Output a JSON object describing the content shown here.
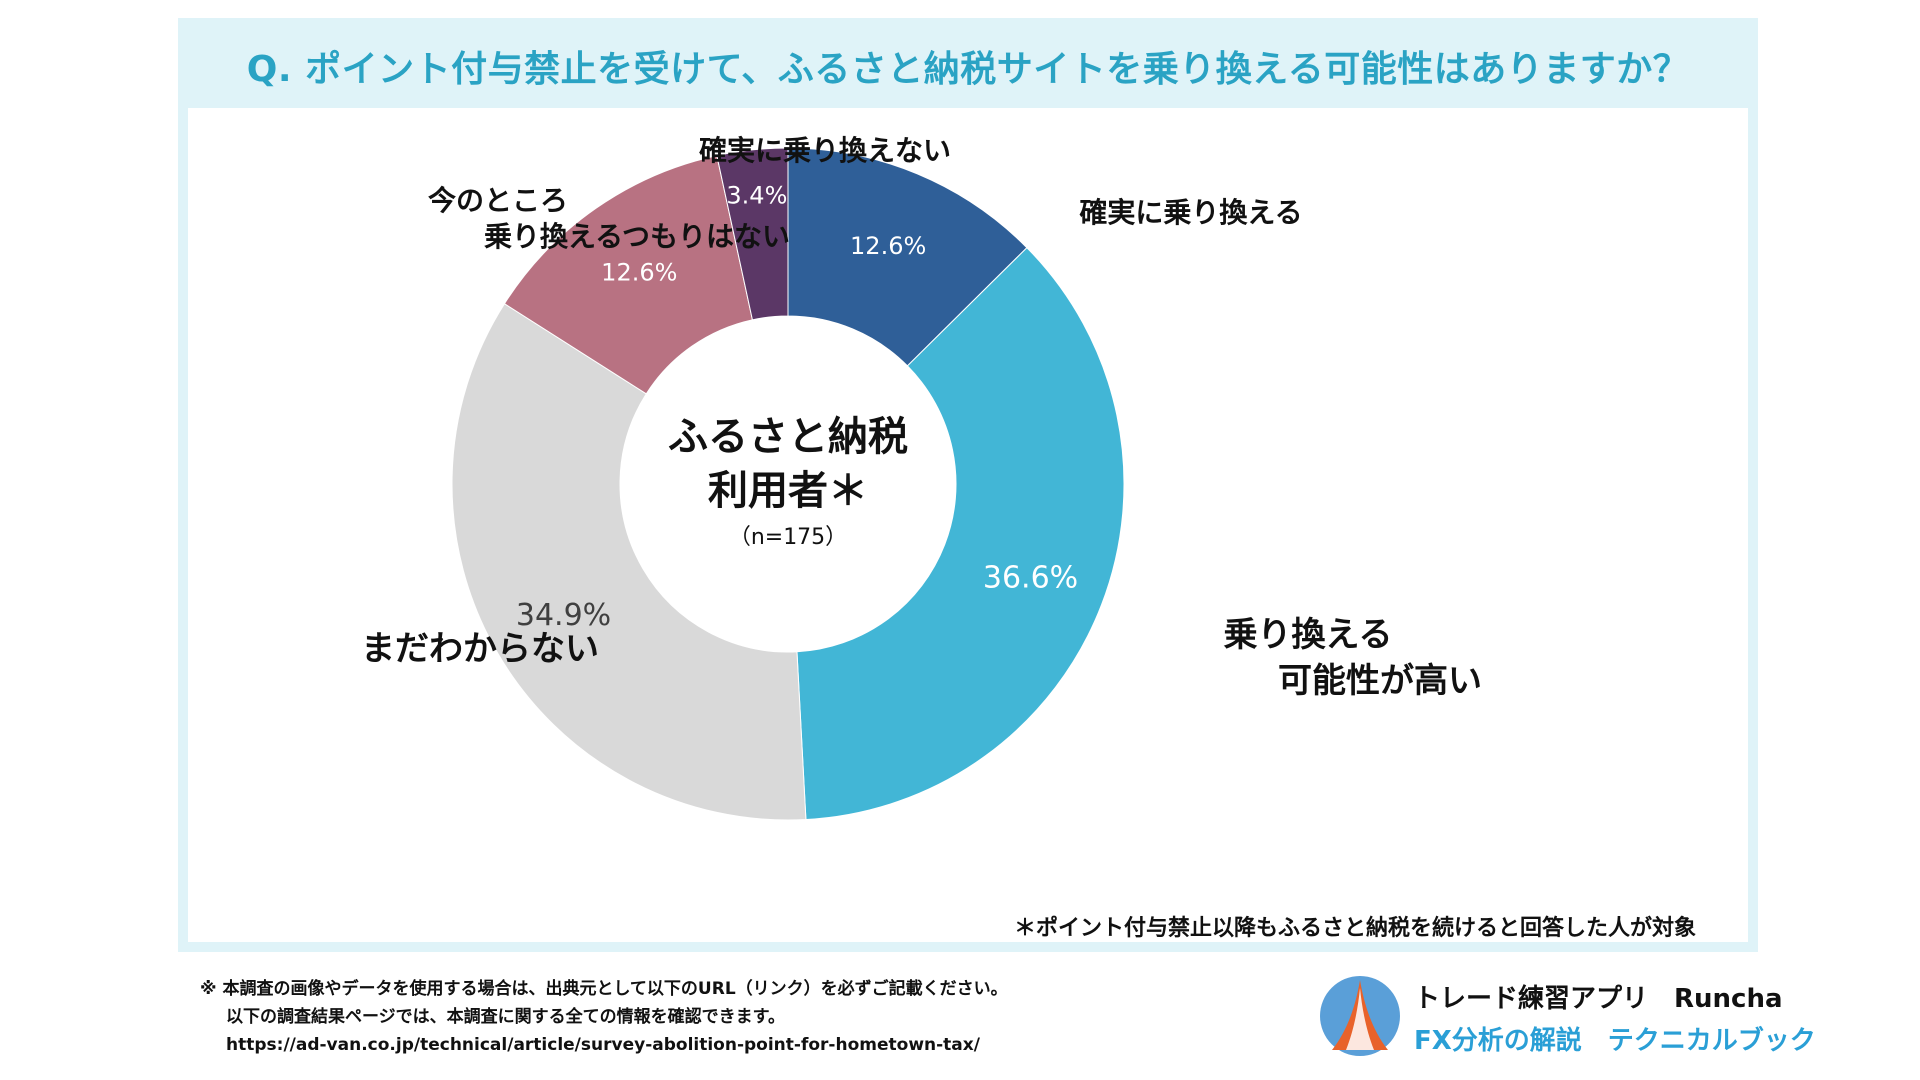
{
  "title": "Q. ポイント付与禁止を受けて、ふるさと納税サイトを乗り換える可能性はありますか？",
  "center": {
    "line1": "ふるさと納税",
    "line2": "利用者＊",
    "line3": "（n=175）"
  },
  "footnote_note": "＊ポイント付与禁止以降もふるさと納税を続けると回答した人が対象",
  "notice": {
    "line1": "※ 本調査の画像やデータを使用する場合は、出典元として以下のURL（リンク）を必ずご記載ください。",
    "line2": "以下の調査結果ページでは、本調査に関する全ての情報を確認できます。",
    "line3": "https://ad-van.co.jp/technical/article/survey-abolition-point-for-hometown-tax/"
  },
  "brand": {
    "name": "トレード練習アプリ　Runcha",
    "sub": "FX分析の解説　テクニカルブック",
    "logo_icon": "runcha-logo-icon"
  },
  "chart_data": {
    "type": "pie",
    "donut": true,
    "slices": [
      {
        "label": "確実に乗り換える",
        "value": 12.6,
        "display": "12.6%",
        "color": "#2f5f98",
        "text_color": "#ffffff"
      },
      {
        "label": "乗り換える可能性が高い",
        "label_lines": [
          "乗り換える",
          "可能性が高い"
        ],
        "value": 36.6,
        "display": "36.6%",
        "color": "#42b6d6",
        "text_color": "#ffffff"
      },
      {
        "label": "まだわからない",
        "value": 34.9,
        "display": "34.9%",
        "color": "#d9d9d9",
        "text_color": "#404040"
      },
      {
        "label": "今のところ乗り換えるつもりはない",
        "label_lines": [
          "今のところ",
          "乗り換えるつもりはない"
        ],
        "value": 12.6,
        "display": "12.6%",
        "color": "#b87282",
        "text_color": "#ffffff"
      },
      {
        "label": "確実に乗り換えない",
        "value": 3.4,
        "display": "3.4%",
        "color": "#5b3766",
        "text_color": "#ffffff"
      }
    ]
  }
}
